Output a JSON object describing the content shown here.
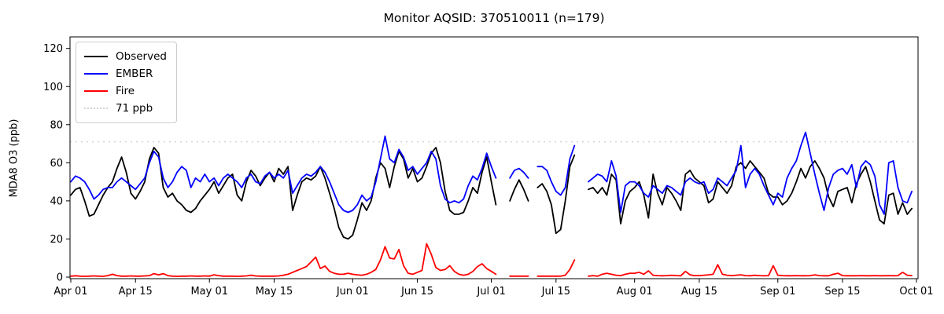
{
  "title": "Monitor AQSID: 370510011 (n=179)",
  "chart_data": {
    "type": "line",
    "title": "Monitor AQSID: 370510011 (n=179)",
    "xlabel": "",
    "ylabel": "MDA8 O3 (ppb)",
    "n_days": 183,
    "x_start": "Apr 01",
    "x_end": "Oct 01",
    "x_tick_labels": [
      "Apr 01",
      "Apr 15",
      "May 01",
      "May 15",
      "Jun 01",
      "Jun 15",
      "Jul 01",
      "Jul 15",
      "Aug 01",
      "Aug 15",
      "Sep 01",
      "Sep 15",
      "Oct 01"
    ],
    "x_tick_day_index": [
      0,
      14,
      30,
      44,
      61,
      75,
      91,
      105,
      122,
      136,
      153,
      167,
      183
    ],
    "y_ticks": [
      0,
      20,
      40,
      60,
      80,
      100,
      120
    ],
    "ylim": [
      -2,
      126
    ],
    "grid": false,
    "legend_position": "upper-left",
    "threshold": {
      "label": "71 ppb",
      "value": 71,
      "color": "#d3d3d3",
      "style": "dotted"
    },
    "series": [
      {
        "name": "Observed",
        "color": "#000000",
        "values": [
          43,
          46,
          47,
          40,
          32,
          33,
          38,
          43,
          47,
          50,
          57,
          63,
          55,
          44,
          41,
          45,
          50,
          62,
          68,
          65,
          47,
          42,
          44,
          40,
          38,
          35,
          34,
          36,
          40,
          43,
          46,
          50,
          44,
          48,
          52,
          54,
          43,
          40,
          50,
          56,
          53,
          48,
          52,
          55,
          50,
          57,
          54,
          58,
          35,
          43,
          50,
          52,
          51,
          53,
          58,
          52,
          44,
          36,
          26,
          21,
          20,
          22,
          30,
          39,
          35,
          40,
          52,
          60,
          57,
          47,
          58,
          66,
          62,
          52,
          57,
          50,
          52,
          58,
          65,
          68,
          60,
          45,
          35,
          33,
          33,
          34,
          40,
          47,
          44,
          55,
          63,
          50,
          38,
          null,
          null,
          40,
          46,
          51,
          46,
          40,
          null,
          47,
          49,
          45,
          38,
          23,
          25,
          40,
          58,
          64,
          null,
          null,
          46,
          47,
          44,
          47,
          43,
          54,
          51,
          28,
          40,
          45,
          47,
          50,
          43,
          31,
          54,
          44,
          38,
          47,
          44,
          40,
          35,
          54,
          56,
          52,
          50,
          48,
          39,
          41,
          50,
          47,
          44,
          48,
          58,
          60,
          57,
          61,
          58,
          55,
          52,
          44,
          42,
          42,
          38,
          40,
          44,
          50,
          57,
          52,
          58,
          61,
          57,
          52,
          42,
          37,
          45,
          46,
          47,
          39,
          49,
          54,
          58,
          50,
          40,
          30,
          28,
          43,
          44,
          33,
          39,
          33,
          36
        ]
      },
      {
        "name": "EMBER",
        "color": "#0000ff",
        "values": [
          50,
          53,
          52,
          50,
          46,
          41,
          43,
          46,
          47,
          47,
          50,
          52,
          50,
          48,
          46,
          49,
          52,
          60,
          66,
          63,
          52,
          47,
          50,
          55,
          58,
          56,
          47,
          52,
          50,
          54,
          50,
          52,
          48,
          52,
          54,
          52,
          50,
          47,
          52,
          54,
          50,
          49,
          53,
          55,
          52,
          54,
          52,
          56,
          44,
          48,
          52,
          54,
          53,
          55,
          58,
          55,
          50,
          44,
          38,
          35,
          34,
          35,
          38,
          43,
          40,
          42,
          50,
          62,
          74,
          62,
          60,
          67,
          63,
          56,
          58,
          54,
          57,
          60,
          66,
          62,
          48,
          41,
          39,
          40,
          39,
          41,
          48,
          53,
          51,
          57,
          65,
          58,
          52,
          null,
          null,
          52,
          56,
          57,
          55,
          52,
          null,
          58,
          58,
          56,
          50,
          45,
          43,
          47,
          62,
          69,
          null,
          null,
          50,
          52,
          54,
          53,
          50,
          61,
          53,
          34,
          48,
          50,
          50,
          48,
          44,
          42,
          48,
          46,
          44,
          48,
          47,
          45,
          43,
          50,
          52,
          50,
          49,
          50,
          44,
          46,
          52,
          50,
          48,
          52,
          56,
          69,
          47,
          54,
          57,
          54,
          48,
          43,
          38,
          44,
          42,
          52,
          57,
          61,
          69,
          76,
          65,
          54,
          44,
          35,
          47,
          54,
          56,
          57,
          54,
          59,
          47,
          58,
          61,
          59,
          53,
          38,
          33,
          60,
          61,
          47,
          40,
          39,
          45
        ]
      },
      {
        "name": "Fire",
        "color": "#ff0000",
        "values": [
          0.5,
          0.7,
          0.5,
          0.4,
          0.5,
          0.6,
          0.5,
          0.4,
          0.8,
          1.5,
          0.8,
          0.5,
          0.5,
          0.6,
          0.5,
          0.5,
          0.6,
          0.8,
          1.8,
          1.2,
          1.8,
          0.8,
          0.5,
          0.4,
          0.5,
          0.5,
          0.6,
          0.5,
          0.5,
          0.6,
          0.5,
          1.2,
          0.8,
          0.5,
          0.5,
          0.5,
          0.4,
          0.5,
          0.6,
          1.0,
          0.6,
          0.5,
          0.5,
          0.5,
          0.5,
          0.6,
          1.0,
          1.5,
          2.5,
          3.5,
          4.5,
          5.5,
          8.0,
          10.5,
          4.5,
          5.8,
          3.0,
          2.0,
          1.5,
          1.5,
          2.0,
          1.5,
          1.2,
          1.0,
          1.5,
          2.5,
          4.0,
          9.0,
          16.0,
          10.0,
          9.5,
          14.5,
          6.0,
          2.0,
          1.5,
          2.5,
          3.5,
          17.5,
          12.0,
          5.0,
          3.5,
          4.0,
          6.0,
          3.0,
          1.5,
          1.0,
          1.5,
          3.0,
          5.5,
          7.0,
          4.5,
          3.0,
          1.5,
          null,
          null,
          0.5,
          0.5,
          0.5,
          0.5,
          0.5,
          null,
          0.5,
          0.5,
          0.5,
          0.5,
          0.5,
          0.5,
          1.0,
          4.0,
          9.0,
          null,
          null,
          0.5,
          0.8,
          0.5,
          1.5,
          2.0,
          1.5,
          1.0,
          0.8,
          1.5,
          2.0,
          2.0,
          2.5,
          1.5,
          3.3,
          1.0,
          0.8,
          0.7,
          0.8,
          1.0,
          0.8,
          0.7,
          3.0,
          1.2,
          0.8,
          0.8,
          1.0,
          1.2,
          1.5,
          6.5,
          1.5,
          1.0,
          0.8,
          1.0,
          1.2,
          0.8,
          0.7,
          1.0,
          0.8,
          0.7,
          0.8,
          6.0,
          1.0,
          0.8,
          0.7,
          0.7,
          0.8,
          0.7,
          0.7,
          0.8,
          1.2,
          0.8,
          0.7,
          0.7,
          1.5,
          2.0,
          0.8,
          0.7,
          0.7,
          0.7,
          0.8,
          0.7,
          0.7,
          0.8,
          0.7,
          0.7,
          0.8,
          0.7,
          0.8,
          2.5,
          1.0,
          0.8
        ]
      }
    ]
  }
}
